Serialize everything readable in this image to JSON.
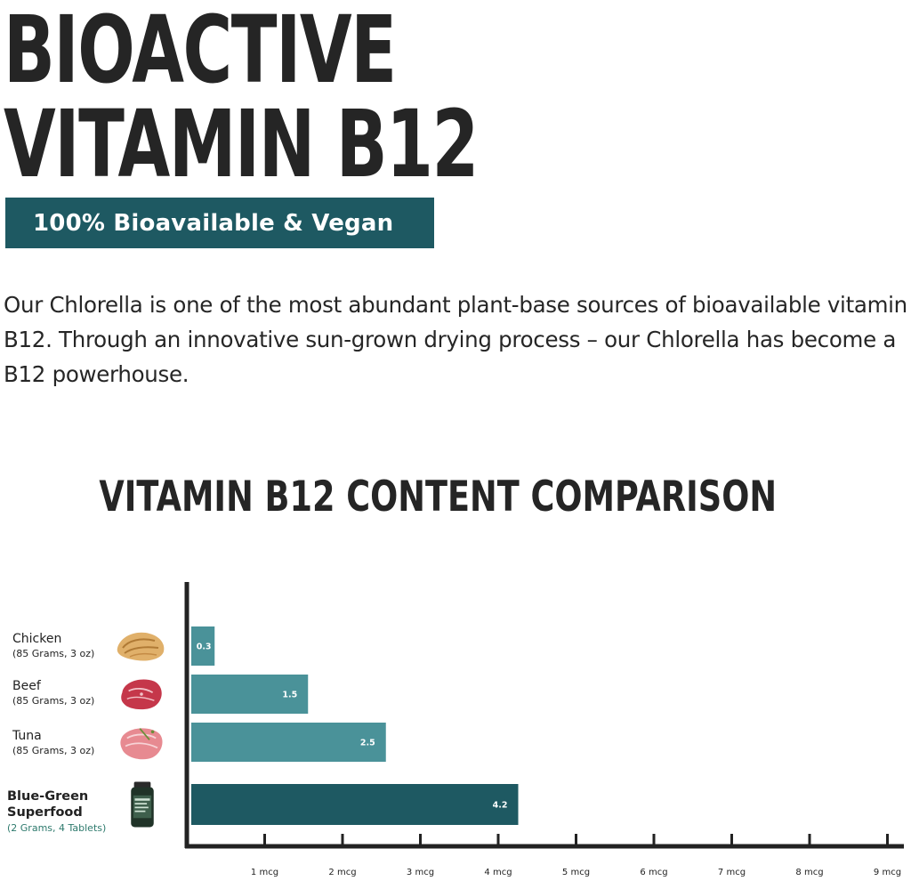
{
  "headline": {
    "line1": "BIOACTIVE",
    "line2": "VITAMIN B12"
  },
  "banner": {
    "text": "100% Bioavailable & Vegan"
  },
  "intro": {
    "text": "Our Chlorella is one of the most abundant plant-base sources of bioavailable vitamin B12. Through an innovative sun-grown drying process – our Chlorella has become a B12 powerhouse."
  },
  "colors": {
    "primary": "#1e5962",
    "bar": "#4a9299",
    "text": "#222222",
    "accent_text": "#2e7a6d"
  },
  "chart_data": {
    "type": "bar",
    "orientation": "horizontal",
    "title": "VITAMIN B12 CONTENT COMPARISON",
    "xlabel": "",
    "ylabel": "",
    "xlim": [
      0,
      9
    ],
    "grid": false,
    "ticks": [
      "1 mcg",
      "2 mcg",
      "3 mcg",
      "4 mcg",
      "5 mcg",
      "6 mcg",
      "7 mcg",
      "8 mcg",
      "9 mcg"
    ],
    "categories": [
      {
        "name": "Chicken",
        "sub": "(85 Grams, 3 oz)",
        "icon": "chicken-breast-icon",
        "value": 0.3,
        "label": "0.3",
        "color": "#4a9299",
        "highlight": false
      },
      {
        "name": "Beef",
        "sub": "(85 Grams, 3 oz)",
        "icon": "beef-steak-icon",
        "value": 1.5,
        "label": "1.5",
        "color": "#4a9299",
        "highlight": false
      },
      {
        "name": "Tuna",
        "sub": "(85 Grams, 3 oz)",
        "icon": "tuna-steak-icon",
        "value": 2.5,
        "label": "2.5",
        "color": "#4a9299",
        "highlight": false
      },
      {
        "name": "Blue-Green Superfood",
        "sub": "(2 Grams, 4 Tablets)",
        "icon": "supplement-bottle-icon",
        "value": 4.2,
        "label": "4.2",
        "color": "#1e5962",
        "highlight": true
      }
    ]
  }
}
